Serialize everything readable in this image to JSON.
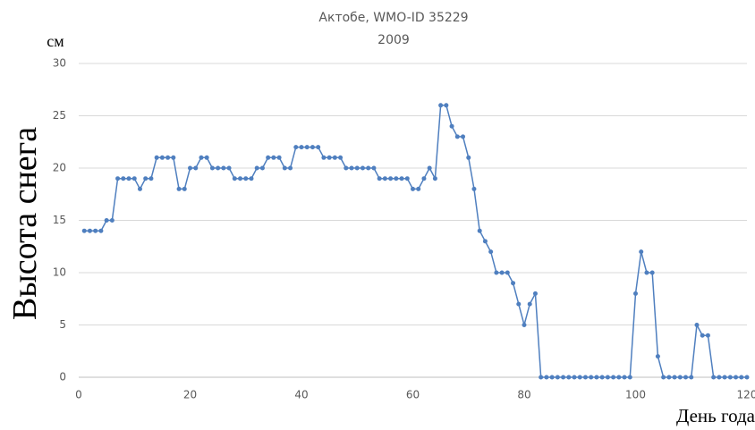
{
  "chart_data": {
    "type": "line",
    "title": "Актобе, WMO-ID 35229",
    "subtitle": "2009",
    "y_label": "Высота снега",
    "y_unit": "см",
    "x_label": "День года",
    "x": [
      1,
      2,
      3,
      4,
      5,
      6,
      7,
      8,
      9,
      10,
      11,
      12,
      13,
      14,
      15,
      16,
      17,
      18,
      19,
      20,
      21,
      22,
      23,
      24,
      25,
      26,
      27,
      28,
      29,
      30,
      31,
      32,
      33,
      34,
      35,
      36,
      37,
      38,
      39,
      40,
      41,
      42,
      43,
      44,
      45,
      46,
      47,
      48,
      49,
      50,
      51,
      52,
      53,
      54,
      55,
      56,
      57,
      58,
      59,
      60,
      61,
      62,
      63,
      64,
      65,
      66,
      67,
      68,
      69,
      70,
      71,
      72,
      73,
      74,
      75,
      76,
      77,
      78,
      79,
      80,
      81,
      82,
      83,
      84,
      85,
      86,
      87,
      88,
      89,
      90,
      91,
      92,
      93,
      94,
      95,
      96,
      97,
      98,
      99,
      100,
      101,
      102,
      103,
      104,
      105,
      106,
      107,
      108,
      109,
      110,
      111,
      112,
      113,
      114,
      115,
      116,
      117,
      118,
      119,
      120
    ],
    "series": [
      {
        "color": "#4f7fbf",
        "values": [
          14,
          14,
          14,
          14,
          15,
          15,
          19,
          19,
          19,
          19,
          18,
          19,
          19,
          21,
          21,
          21,
          21,
          18,
          18,
          20,
          20,
          21,
          21,
          20,
          20,
          20,
          20,
          19,
          19,
          19,
          19,
          20,
          20,
          21,
          21,
          21,
          20,
          20,
          22,
          22,
          22,
          22,
          22,
          21,
          21,
          21,
          21,
          20,
          20,
          20,
          20,
          20,
          20,
          19,
          19,
          19,
          19,
          19,
          19,
          18,
          18,
          19,
          20,
          19,
          26,
          26,
          24,
          23,
          23,
          21,
          18,
          14,
          13,
          12,
          10,
          10,
          10,
          9,
          7,
          5,
          7,
          8,
          0,
          0,
          0,
          0,
          0,
          0,
          0,
          0,
          0,
          0,
          0,
          0,
          0,
          0,
          0,
          0,
          0,
          8,
          12,
          10,
          10,
          2,
          0,
          0,
          0,
          0,
          0,
          0,
          5,
          4,
          4,
          0,
          0,
          0,
          0,
          0,
          0,
          0
        ]
      }
    ],
    "xlim": [
      0,
      120
    ],
    "xticks": [
      0,
      20,
      40,
      60,
      80,
      100,
      120
    ],
    "ylim": [
      0,
      30
    ],
    "yticks": [
      0,
      5,
      10,
      15,
      20,
      25,
      30
    ],
    "grid": true
  }
}
